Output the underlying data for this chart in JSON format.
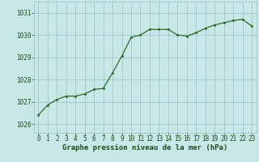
{
  "x": [
    0,
    1,
    2,
    3,
    4,
    5,
    6,
    7,
    8,
    9,
    10,
    11,
    12,
    13,
    14,
    15,
    16,
    17,
    18,
    19,
    20,
    21,
    22,
    23
  ],
  "y": [
    1026.4,
    1026.85,
    1027.1,
    1027.25,
    1027.25,
    1027.35,
    1027.55,
    1027.6,
    1028.3,
    1029.05,
    1029.9,
    1030.0,
    1030.25,
    1030.25,
    1030.25,
    1030.0,
    1029.95,
    1030.1,
    1030.3,
    1030.45,
    1030.55,
    1030.65,
    1030.7,
    1030.4
  ],
  "line_color": "#2d6a2d",
  "marker_color": "#2d6a2d",
  "bg_color": "#c8e8e8",
  "grid_color": "#a0c8c8",
  "xlabel": "Graphe pression niveau de la mer (hPa)",
  "xlabel_fontsize": 6.5,
  "ytick_labels": [
    "1026",
    "1027",
    "1028",
    "1029",
    "1030",
    "1031"
  ],
  "ytick_values": [
    1026,
    1027,
    1028,
    1029,
    1030,
    1031
  ],
  "ylim": [
    1025.6,
    1031.5
  ],
  "xlim": [
    -0.5,
    23.5
  ],
  "xtick_values": [
    0,
    1,
    2,
    3,
    4,
    5,
    6,
    7,
    8,
    9,
    10,
    11,
    12,
    13,
    14,
    15,
    16,
    17,
    18,
    19,
    20,
    21,
    22,
    23
  ],
  "tick_fontsize": 5.5,
  "label_color": "#1a4a1a",
  "line_width": 0.9,
  "marker_size": 2.0
}
